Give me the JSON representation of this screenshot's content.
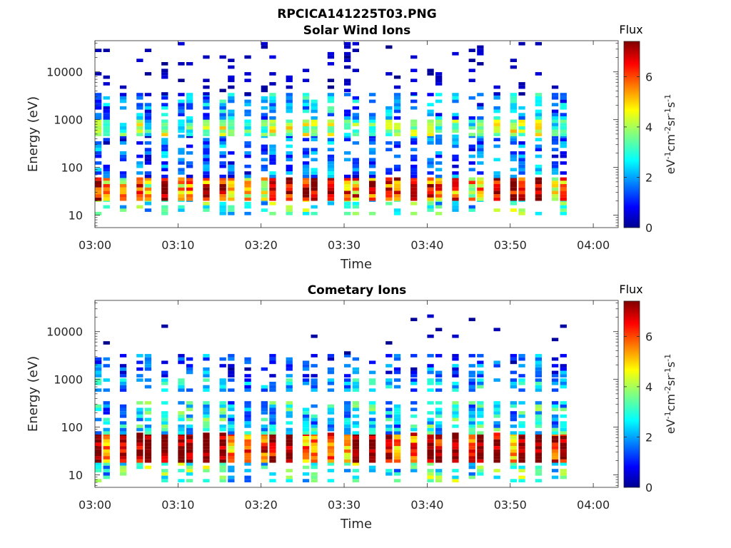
{
  "figure": {
    "title": "RPCICA141225T03.PNG"
  },
  "chart_data": [
    {
      "type": "heatmap",
      "title": "Solar Wind Ions",
      "xlabel": "Time",
      "ylabel": "Energy (eV)",
      "x_ticks": [
        "03:00",
        "03:10",
        "03:20",
        "03:30",
        "03:40",
        "03:50",
        "04:00"
      ],
      "x_range": [
        "03:00",
        "04:03"
      ],
      "y_scale": "log",
      "y_ticks": [
        "10",
        "100",
        "1000",
        "10000"
      ],
      "y_range": [
        5.5,
        45000
      ],
      "colorbar": {
        "label": "Flux",
        "unit_label": "eV-1cm-2sr-1s-1",
        "ticks": [
          "0",
          "2",
          "4",
          "6"
        ],
        "range": [
          0,
          7.4
        ],
        "colormap": "jet"
      },
      "scan_start_times": [
        "03:00",
        "03:01",
        "03:03",
        "03:05",
        "03:06",
        "03:08",
        "03:10",
        "03:11",
        "03:13",
        "03:15",
        "03:16",
        "03:18",
        "03:20",
        "03:21",
        "03:23",
        "03:25",
        "03:26",
        "03:28",
        "03:30",
        "03:31",
        "03:33",
        "03:35",
        "03:36",
        "03:38",
        "03:40",
        "03:41",
        "03:43",
        "03:45",
        "03:46",
        "03:48",
        "03:50",
        "03:51",
        "03:53",
        "03:55",
        "03:56"
      ],
      "scan_duration_min": 0.8,
      "energy_bin_log10_width": 0.07,
      "bands": [
        {
          "energy_low_eV": 10,
          "energy_high_eV": 20,
          "flux_peak": 3.0,
          "fill": 0.55,
          "spread": 1.2
        },
        {
          "energy_low_eV": 20,
          "energy_high_eV": 60,
          "flux_peak": 6.0,
          "fill": 1.0,
          "spread": 1.6
        },
        {
          "energy_low_eV": 60,
          "energy_high_eV": 450,
          "flux_peak": 1.6,
          "fill": 0.55,
          "spread": 1.0
        },
        {
          "energy_low_eV": 450,
          "energy_high_eV": 1000,
          "flux_peak": 3.6,
          "fill": 0.95,
          "spread": 1.0
        },
        {
          "energy_low_eV": 1000,
          "energy_high_eV": 3200,
          "flux_peak": 2.0,
          "fill": 0.7,
          "spread": 1.2
        },
        {
          "energy_low_eV": 3200,
          "energy_high_eV": 40000,
          "flux_peak": 0.35,
          "fill": 0.22,
          "spread": 0.4
        }
      ]
    },
    {
      "type": "heatmap",
      "title": "Cometary Ions",
      "xlabel": "Time",
      "ylabel": "Energy (eV)",
      "x_ticks": [
        "03:00",
        "03:10",
        "03:20",
        "03:30",
        "03:40",
        "03:50",
        "04:00"
      ],
      "x_range": [
        "03:00",
        "04:03"
      ],
      "y_scale": "log",
      "y_ticks": [
        "10",
        "100",
        "1000",
        "10000"
      ],
      "y_range": [
        5.5,
        45000
      ],
      "colorbar": {
        "label": "Flux",
        "unit_label": "eV-1cm-2sr-1s-1",
        "ticks": [
          "0",
          "2",
          "4",
          "6"
        ],
        "range": [
          0,
          7.4
        ],
        "colormap": "jet"
      },
      "scan_start_times": [
        "03:00",
        "03:01",
        "03:03",
        "03:05",
        "03:06",
        "03:08",
        "03:10",
        "03:11",
        "03:13",
        "03:15",
        "03:16",
        "03:18",
        "03:20",
        "03:21",
        "03:23",
        "03:25",
        "03:26",
        "03:28",
        "03:30",
        "03:31",
        "03:33",
        "03:35",
        "03:36",
        "03:38",
        "03:40",
        "03:41",
        "03:43",
        "03:45",
        "03:46",
        "03:48",
        "03:50",
        "03:51",
        "03:53",
        "03:55",
        "03:56"
      ],
      "scan_duration_min": 0.8,
      "energy_bin_log10_width": 0.07,
      "bands": [
        {
          "energy_low_eV": 7,
          "energy_high_eV": 18,
          "flux_peak": 3.0,
          "fill": 0.5,
          "spread": 1.2
        },
        {
          "energy_low_eV": 18,
          "energy_high_eV": 70,
          "flux_peak": 6.6,
          "fill": 1.0,
          "spread": 1.2
        },
        {
          "energy_low_eV": 70,
          "energy_high_eV": 350,
          "flux_peak": 2.5,
          "fill": 0.75,
          "spread": 1.3
        },
        {
          "energy_low_eV": 550,
          "energy_high_eV": 900,
          "flux_peak": 2.2,
          "fill": 0.7,
          "spread": 1.0
        },
        {
          "energy_low_eV": 1100,
          "energy_high_eV": 3300,
          "flux_peak": 1.4,
          "fill": 0.6,
          "spread": 1.0
        },
        {
          "energy_low_eV": 3300,
          "energy_high_eV": 22000,
          "flux_peak": 0.3,
          "fill": 0.04,
          "spread": 0.2
        }
      ]
    }
  ]
}
